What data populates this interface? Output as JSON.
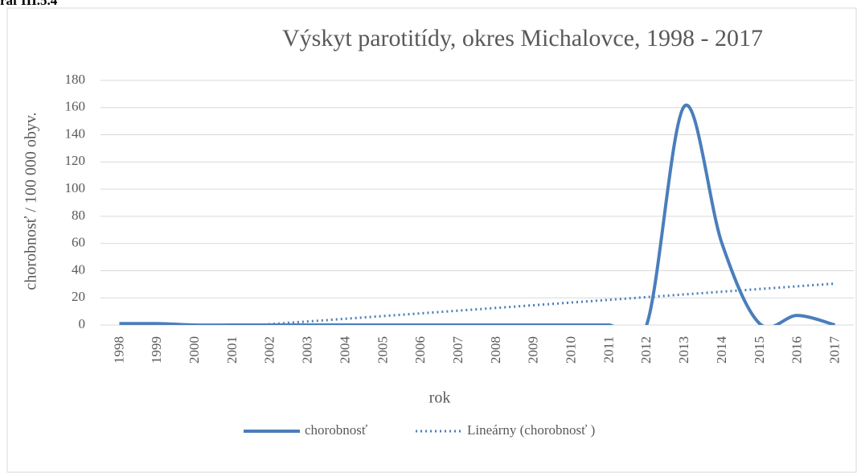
{
  "caption": "raf III.5.4",
  "chart_data": {
    "type": "line",
    "title": "Výskyt  parotitídy, okres Michalovce, 1998 - 2017",
    "x_label": "rok",
    "y_label": "chorobnosť / 100 000 obyv.",
    "categories": [
      "1998",
      "1999",
      "2000",
      "2001",
      "2002",
      "2003",
      "2004",
      "2005",
      "2006",
      "2007",
      "2008",
      "2009",
      "2010",
      "2011",
      "2012",
      "2013",
      "2014",
      "2015",
      "2016",
      "2017"
    ],
    "series": [
      {
        "name": "chorobnosť",
        "color": "#4a7ebb",
        "smooth": true,
        "values": [
          1,
          1,
          0,
          0,
          0,
          0,
          0,
          0,
          0,
          0,
          0,
          0,
          0,
          0,
          0,
          161,
          60,
          1,
          7,
          0
        ]
      }
    ],
    "trendline": {
      "name": "Lineárny (chorobnosť )",
      "fit": "linear",
      "color": "#4a7ebb"
    },
    "ylim": [
      0,
      180
    ],
    "yticks": [
      0,
      20,
      40,
      60,
      80,
      100,
      120,
      140,
      160,
      180
    ],
    "grid": true,
    "legend": "bottom"
  }
}
